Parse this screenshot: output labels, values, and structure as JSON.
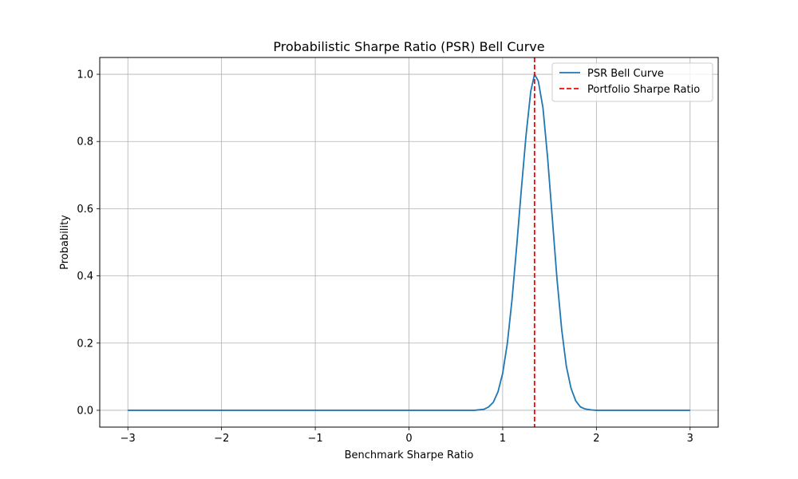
{
  "chart_data": {
    "type": "line",
    "title": "Probabilistic Sharpe Ratio (PSR) Bell Curve",
    "xlabel": "Benchmark Sharpe Ratio",
    "ylabel": "Probability",
    "xlim": [
      -3.3,
      3.3
    ],
    "ylim": [
      -0.05,
      1.05
    ],
    "xticks": [
      -3,
      -2,
      -1,
      0,
      1,
      2,
      3
    ],
    "xtick_labels": [
      "−3",
      "−2",
      "−1",
      "0",
      "1",
      "2",
      "3"
    ],
    "yticks": [
      0.0,
      0.2,
      0.4,
      0.6,
      0.8,
      1.0
    ],
    "ytick_labels": [
      "0.0",
      "0.2",
      "0.4",
      "0.6",
      "0.8",
      "1.0"
    ],
    "grid": true,
    "legend_position": "top-right",
    "series": [
      {
        "name": "PSR Bell Curve",
        "color": "#1f77b4",
        "style": "solid",
        "x": [
          -3.0,
          -2.5,
          -2.0,
          -1.5,
          -1.0,
          -0.5,
          0.0,
          0.5,
          0.7,
          0.8,
          0.85,
          0.9,
          0.95,
          1.0,
          1.05,
          1.1,
          1.15,
          1.2,
          1.25,
          1.3,
          1.34,
          1.38,
          1.43,
          1.48,
          1.53,
          1.58,
          1.63,
          1.68,
          1.73,
          1.78,
          1.83,
          1.88,
          1.95,
          2.0,
          2.5,
          3.0
        ],
        "y": [
          0.0,
          0.0,
          0.0,
          0.0,
          0.0,
          0.0,
          0.0,
          0.0,
          0.0,
          0.003,
          0.01,
          0.024,
          0.055,
          0.11,
          0.2,
          0.33,
          0.49,
          0.66,
          0.82,
          0.95,
          1.0,
          0.98,
          0.9,
          0.75,
          0.57,
          0.39,
          0.24,
          0.13,
          0.065,
          0.028,
          0.01,
          0.004,
          0.001,
          0.0,
          0.0,
          0.0
        ]
      }
    ],
    "vlines": [
      {
        "name": "Portfolio Sharpe Ratio",
        "x": 1.34,
        "color": "#ff0000",
        "style": "dashed"
      }
    ]
  }
}
